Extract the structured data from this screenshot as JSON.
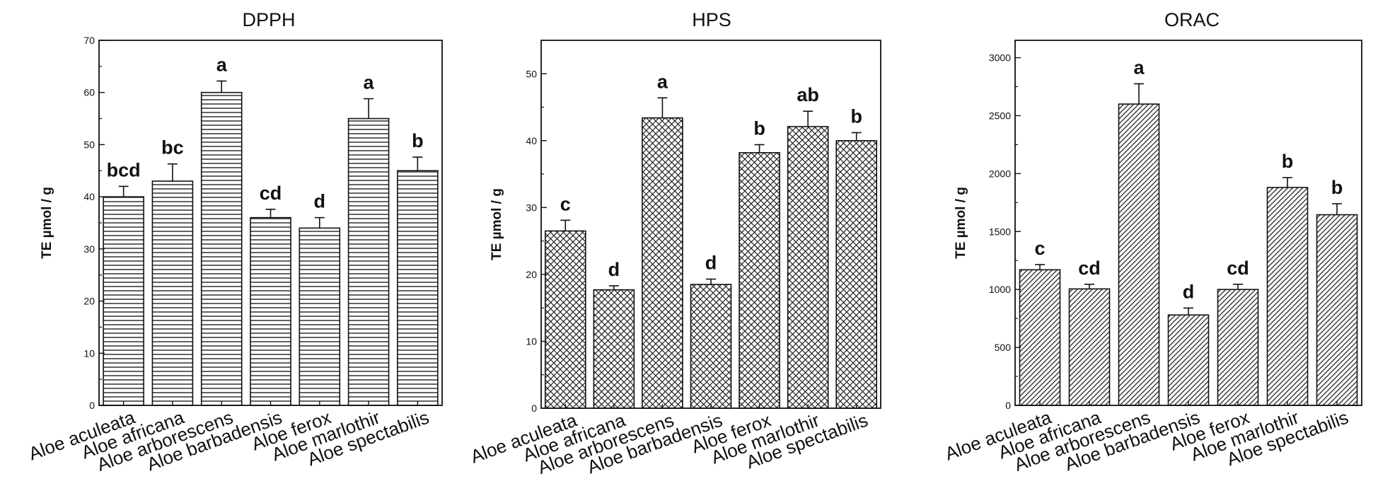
{
  "chart_data": [
    {
      "type": "bar",
      "title": "DPPH",
      "ylabel": "TE µmol / g",
      "xlabel": "",
      "ylim": [
        0,
        70
      ],
      "yticks": [
        0,
        10,
        20,
        30,
        40,
        50,
        60,
        70
      ],
      "pattern": "horizontal-lines",
      "categories": [
        "Aloe aculeata",
        "Aloe africana",
        "Aloe arborescens",
        "Aloe barbadensis",
        "Aloe ferox",
        "Aloe marlothir",
        "Aloe spectabilis"
      ],
      "values": [
        40,
        43,
        60,
        36,
        34,
        55,
        45
      ],
      "errors": [
        2,
        3.3,
        2.2,
        1.6,
        2,
        3.8,
        2.6
      ],
      "significance": [
        "bcd",
        "bc",
        "a",
        "cd",
        "d",
        "a",
        "b"
      ]
    },
    {
      "type": "bar",
      "title": "HPS",
      "ylabel": "TE µmol / g",
      "xlabel": "",
      "ylim": [
        0,
        55
      ],
      "yticks": [
        0,
        10,
        20,
        30,
        40,
        50
      ],
      "pattern": "crosshatch",
      "categories": [
        "Aloe aculeata",
        "Aloe africana",
        "Aloe arborescens",
        "Aloe barbadensis",
        "Aloe ferox",
        "Aloe marlothir",
        "Aloe spectabilis"
      ],
      "values": [
        26.5,
        17.7,
        43.4,
        18.5,
        38.2,
        42.1,
        40
      ],
      "errors": [
        1.6,
        0.6,
        3,
        0.8,
        1.2,
        2.3,
        1.2
      ],
      "significance": [
        "c",
        "d",
        "a",
        "d",
        "b",
        "ab",
        "b"
      ]
    },
    {
      "type": "bar",
      "title": "ORAC",
      "ylabel": "TE µmol / g",
      "xlabel": "",
      "ylim": [
        0,
        3150
      ],
      "yticks": [
        0,
        500,
        1000,
        1500,
        2000,
        2500,
        3000
      ],
      "pattern": "diagonal-lines",
      "categories": [
        "Aloe aculeata",
        "Aloe africana",
        "Aloe arborescens",
        "Aloe barbadensis",
        "Aloe ferox",
        "Aloe marlothir",
        "Aloe spectabilis"
      ],
      "values": [
        1170,
        1005,
        2600,
        780,
        1000,
        1880,
        1645
      ],
      "errors": [
        45,
        40,
        175,
        60,
        45,
        85,
        95
      ],
      "significance": [
        "c",
        "cd",
        "a",
        "d",
        "cd",
        "b",
        "b"
      ]
    }
  ]
}
